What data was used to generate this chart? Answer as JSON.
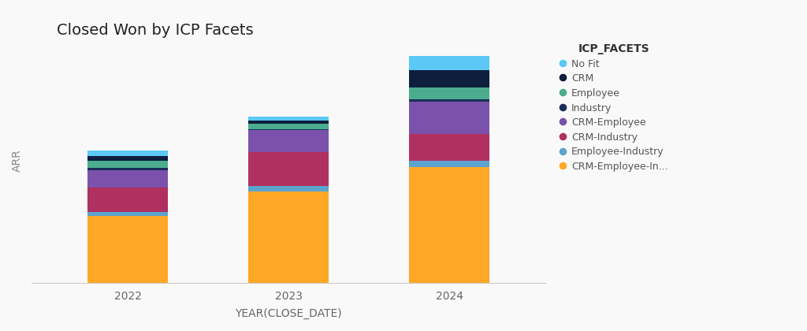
{
  "title": "Closed Won by ICP Facets",
  "xlabel": "YEAR(CLOSE_DATE)",
  "ylabel": "ARR",
  "legend_title": "ICP_FACETS",
  "years": [
    "2022",
    "2023",
    "2024"
  ],
  "categories": [
    "CRM-Employee-In...",
    "Employee-Industry",
    "CRM-Industry",
    "CRM-Employee",
    "Industry",
    "Employee",
    "CRM",
    "No Fit"
  ],
  "colors": [
    "#FFA726",
    "#5BA4CF",
    "#B03060",
    "#7B52AB",
    "#1A2E5A",
    "#4BAD8D",
    "#0D1F3C",
    "#5BC8F5"
  ],
  "values": {
    "2022": [
      55,
      3,
      20,
      14,
      2,
      6,
      4,
      4
    ],
    "2023": [
      75,
      4,
      28,
      18,
      1,
      4,
      3,
      3
    ],
    "2024": [
      95,
      5,
      22,
      26,
      2,
      10,
      14,
      12
    ]
  },
  "background_color": "#f9f9f9",
  "plot_background": "#f9f9f9",
  "bar_width": 0.5,
  "ylim": [
    0,
    200
  ],
  "title_fontsize": 14,
  "axis_label_fontsize": 10,
  "tick_fontsize": 10,
  "legend_fontsize": 9
}
